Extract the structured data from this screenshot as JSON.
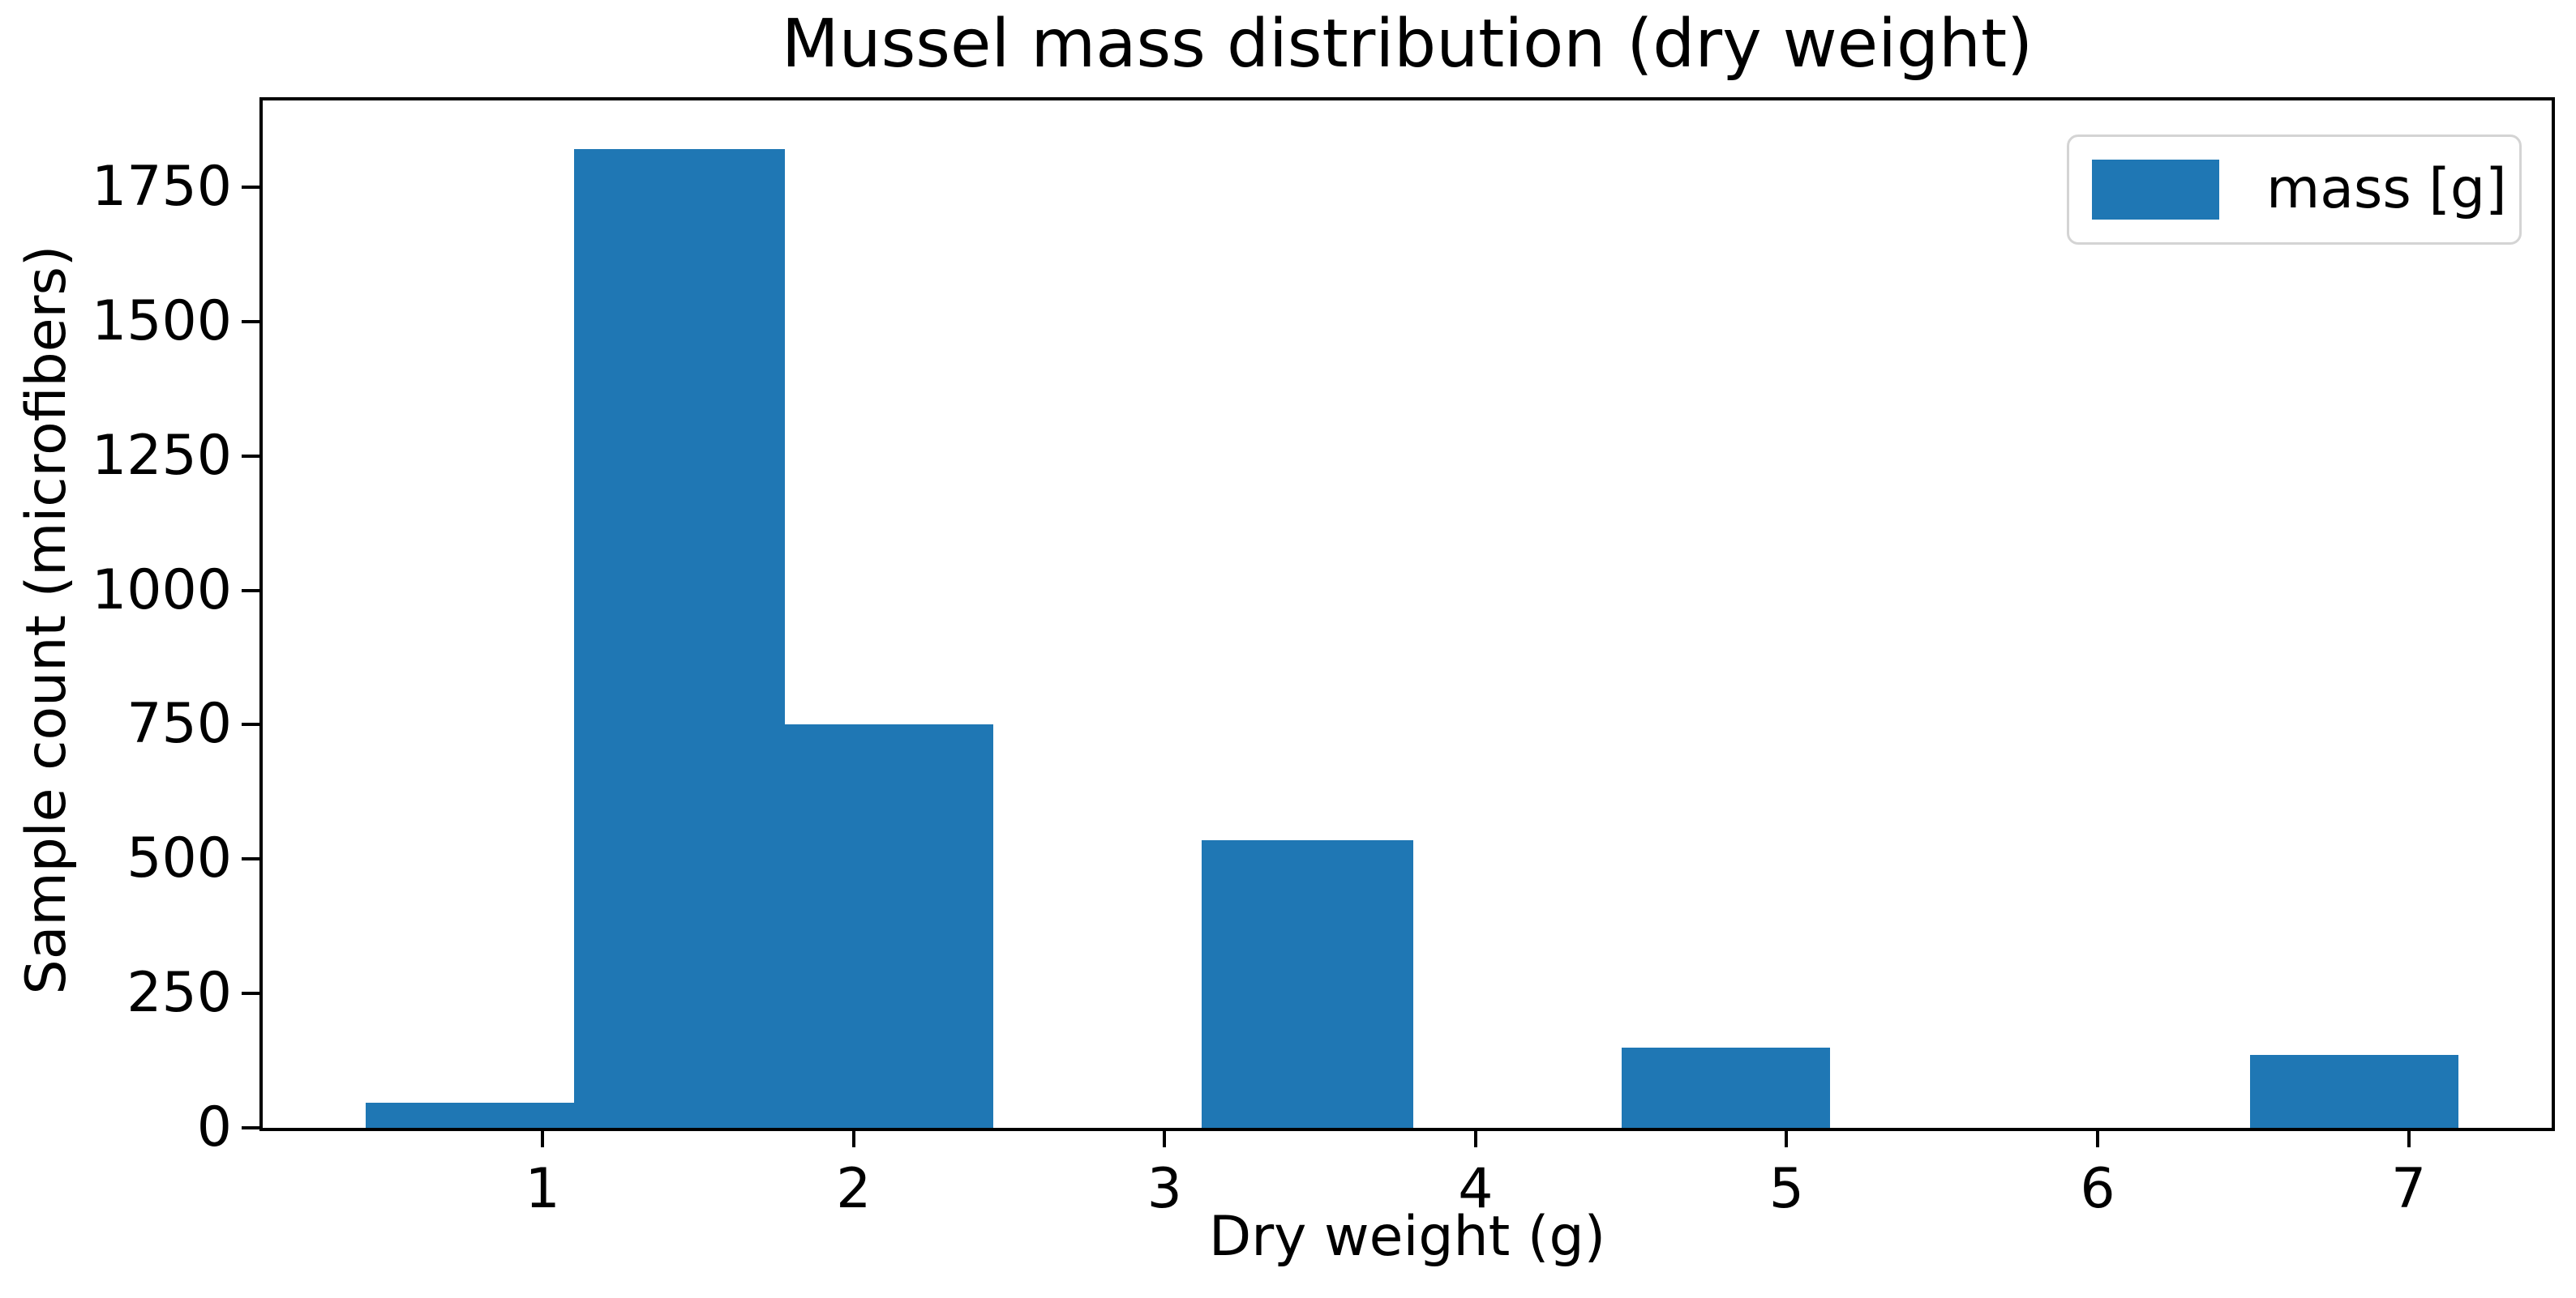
{
  "figure": {
    "title": "Mussel mass distribution (dry weight)"
  },
  "axes": {
    "xlabel": "Dry weight (g)",
    "ylabel": "Sample count (microfibers)"
  },
  "legend": {
    "label": "mass [g]",
    "swatch_color": "#1f77b4",
    "border_color": "#d4d4d4"
  },
  "colors": {
    "bar": "#1f77b4",
    "spine": "#000000",
    "text": "#000000",
    "background": "#ffffff"
  },
  "chart_data": {
    "type": "bar",
    "subtype": "histogram",
    "title": "Mussel mass distribution (dry weight)",
    "xlabel": "Dry weight (g)",
    "ylabel": "Sample count (microfibers)",
    "legend_entries": [
      "mass [g]"
    ],
    "legend_position": "upper right",
    "grid": false,
    "bar_color": "#1f77b4",
    "bin_edges": [
      0.43,
      1.1,
      1.78,
      2.45,
      3.12,
      3.8,
      4.47,
      5.14,
      5.82,
      6.49,
      7.16
    ],
    "counts": [
      47,
      1820,
      750,
      0,
      535,
      0,
      150,
      0,
      0,
      135
    ],
    "x_ticks": [
      1,
      2,
      3,
      4,
      5,
      6,
      7
    ],
    "x_tick_labels": [
      "1",
      "2",
      "3",
      "4",
      "5",
      "6",
      "7"
    ],
    "y_ticks": [
      0,
      250,
      500,
      750,
      1000,
      1250,
      1500,
      1750
    ],
    "y_tick_labels": [
      "0",
      "250",
      "500",
      "750",
      "1000",
      "1250",
      "1500",
      "1750"
    ],
    "xlim": [
      0.1,
      7.46
    ],
    "ylim": [
      0,
      1911
    ]
  }
}
